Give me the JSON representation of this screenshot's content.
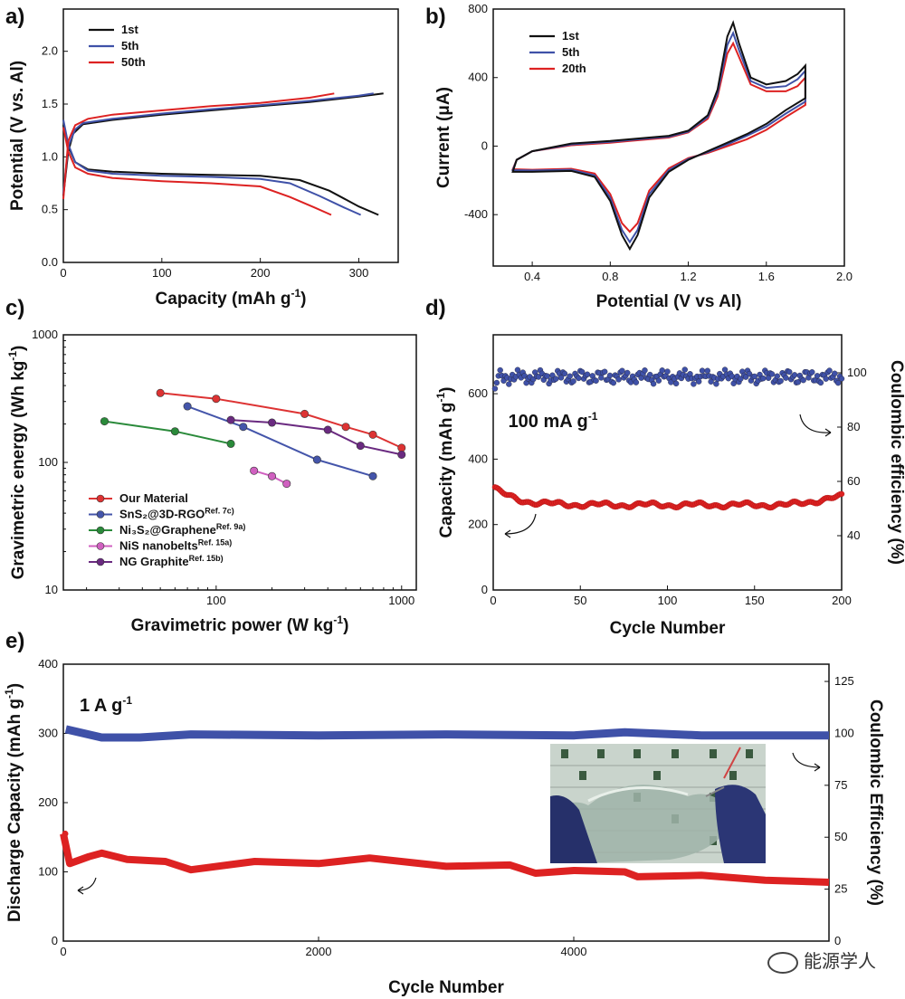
{
  "panel_labels": [
    "a)",
    "b)",
    "c)",
    "d)",
    "e)"
  ],
  "watermark": "能源学人",
  "chart_data": [
    {
      "panel": "a)",
      "type": "line",
      "xlabel": "Capacity (mAh g",
      "xlabel_sup": "-1",
      "xlabel_end": ")",
      "ylabel": "Potential (V vs. Al)",
      "xlim": [
        0,
        340
      ],
      "ylim": [
        0.0,
        2.4
      ],
      "xticks": [
        0,
        100,
        200,
        300
      ],
      "yticks": [
        0.0,
        0.5,
        1.0,
        1.5,
        2.0
      ],
      "ytick_labels": [
        "0.0",
        "0.5",
        "1.0",
        "1.5",
        "2.0"
      ],
      "legend_position": "top-left",
      "series": [
        {
          "name": "1st",
          "color": "#111111",
          "charge": [
            [
              0,
              0.63
            ],
            [
              5,
              1.05
            ],
            [
              10,
              1.22
            ],
            [
              20,
              1.31
            ],
            [
              50,
              1.35
            ],
            [
              100,
              1.4
            ],
            [
              150,
              1.44
            ],
            [
              200,
              1.48
            ],
            [
              250,
              1.52
            ],
            [
              300,
              1.57
            ],
            [
              325,
              1.6
            ]
          ],
          "discharge": [
            [
              0,
              1.3
            ],
            [
              5,
              1.1
            ],
            [
              12,
              0.95
            ],
            [
              25,
              0.88
            ],
            [
              50,
              0.86
            ],
            [
              100,
              0.84
            ],
            [
              150,
              0.83
            ],
            [
              200,
              0.82
            ],
            [
              240,
              0.78
            ],
            [
              270,
              0.68
            ],
            [
              300,
              0.53
            ],
            [
              320,
              0.45
            ]
          ]
        },
        {
          "name": "5th",
          "color": "#3f51a8",
          "charge": [
            [
              0,
              0.65
            ],
            [
              5,
              1.1
            ],
            [
              12,
              1.26
            ],
            [
              20,
              1.32
            ],
            [
              50,
              1.36
            ],
            [
              100,
              1.41
            ],
            [
              150,
              1.45
            ],
            [
              200,
              1.49
            ],
            [
              250,
              1.53
            ],
            [
              300,
              1.58
            ],
            [
              315,
              1.6
            ]
          ],
          "discharge": [
            [
              0,
              1.35
            ],
            [
              5,
              1.12
            ],
            [
              12,
              0.95
            ],
            [
              25,
              0.87
            ],
            [
              50,
              0.84
            ],
            [
              100,
              0.82
            ],
            [
              150,
              0.81
            ],
            [
              200,
              0.79
            ],
            [
              230,
              0.75
            ],
            [
              260,
              0.63
            ],
            [
              285,
              0.52
            ],
            [
              302,
              0.45
            ]
          ]
        },
        {
          "name": "50th",
          "color": "#dd2222",
          "charge": [
            [
              0,
              0.6
            ],
            [
              5,
              1.15
            ],
            [
              12,
              1.3
            ],
            [
              25,
              1.36
            ],
            [
              50,
              1.4
            ],
            [
              100,
              1.44
            ],
            [
              150,
              1.48
            ],
            [
              200,
              1.51
            ],
            [
              250,
              1.56
            ],
            [
              275,
              1.6
            ]
          ],
          "discharge": [
            [
              0,
              1.28
            ],
            [
              5,
              1.05
            ],
            [
              12,
              0.9
            ],
            [
              25,
              0.84
            ],
            [
              50,
              0.8
            ],
            [
              100,
              0.77
            ],
            [
              150,
              0.75
            ],
            [
              200,
              0.72
            ],
            [
              230,
              0.62
            ],
            [
              255,
              0.52
            ],
            [
              272,
              0.45
            ]
          ]
        }
      ]
    },
    {
      "panel": "b)",
      "type": "line",
      "xlabel": "Potential (V vs Al)",
      "ylabel": "Current (μA)",
      "xlim": [
        0.2,
        2.0
      ],
      "ylim": [
        -700,
        800
      ],
      "xticks": [
        0.4,
        0.8,
        1.2,
        1.6,
        2.0
      ],
      "xtick_labels": [
        "0.4",
        "0.8",
        "1.2",
        "1.6",
        "2.0"
      ],
      "yticks": [
        -400,
        0,
        400,
        800
      ],
      "legend_position": "top-left",
      "series": [
        {
          "name": "1st",
          "color": "#111111",
          "peak": 720,
          "valley": -600,
          "points": [
            [
              0.3,
              -150
            ],
            [
              0.4,
              -150
            ],
            [
              0.6,
              -145
            ],
            [
              0.72,
              -180
            ],
            [
              0.8,
              -320
            ],
            [
              0.86,
              -520
            ],
            [
              0.9,
              -600
            ],
            [
              0.94,
              -520
            ],
            [
              1.0,
              -300
            ],
            [
              1.1,
              -150
            ],
            [
              1.2,
              -80
            ],
            [
              1.3,
              -30
            ],
            [
              1.4,
              20
            ],
            [
              1.5,
              70
            ],
            [
              1.6,
              130
            ],
            [
              1.7,
              210
            ],
            [
              1.8,
              280
            ],
            [
              1.8,
              470
            ],
            [
              1.76,
              420
            ],
            [
              1.7,
              380
            ],
            [
              1.6,
              360
            ],
            [
              1.52,
              400
            ],
            [
              1.46,
              600
            ],
            [
              1.43,
              720
            ],
            [
              1.4,
              640
            ],
            [
              1.35,
              330
            ],
            [
              1.3,
              180
            ],
            [
              1.2,
              90
            ],
            [
              1.1,
              60
            ],
            [
              1.0,
              50
            ],
            [
              0.9,
              40
            ],
            [
              0.8,
              30
            ],
            [
              0.6,
              15
            ],
            [
              0.4,
              -30
            ],
            [
              0.32,
              -80
            ],
            [
              0.3,
              -150
            ]
          ]
        },
        {
          "name": "5th",
          "color": "#3f51a8",
          "peak": 660,
          "valley": -560,
          "points": [
            [
              0.3,
              -140
            ],
            [
              0.4,
              -142
            ],
            [
              0.6,
              -138
            ],
            [
              0.72,
              -170
            ],
            [
              0.8,
              -300
            ],
            [
              0.86,
              -490
            ],
            [
              0.9,
              -560
            ],
            [
              0.94,
              -490
            ],
            [
              1.0,
              -280
            ],
            [
              1.1,
              -140
            ],
            [
              1.2,
              -75
            ],
            [
              1.3,
              -35
            ],
            [
              1.4,
              10
            ],
            [
              1.5,
              60
            ],
            [
              1.6,
              115
            ],
            [
              1.7,
              190
            ],
            [
              1.8,
              260
            ],
            [
              1.8,
              440
            ],
            [
              1.76,
              390
            ],
            [
              1.7,
              350
            ],
            [
              1.6,
              340
            ],
            [
              1.52,
              380
            ],
            [
              1.46,
              560
            ],
            [
              1.43,
              660
            ],
            [
              1.4,
              590
            ],
            [
              1.35,
              310
            ],
            [
              1.3,
              170
            ],
            [
              1.2,
              85
            ],
            [
              1.1,
              55
            ],
            [
              1.0,
              45
            ],
            [
              0.9,
              35
            ],
            [
              0.8,
              25
            ],
            [
              0.6,
              10
            ],
            [
              0.4,
              -30
            ],
            [
              0.32,
              -80
            ],
            [
              0.3,
              -140
            ]
          ]
        },
        {
          "name": "20th",
          "color": "#dd2222",
          "peak": 600,
          "valley": -500,
          "points": [
            [
              0.3,
              -135
            ],
            [
              0.4,
              -138
            ],
            [
              0.6,
              -132
            ],
            [
              0.72,
              -160
            ],
            [
              0.8,
              -280
            ],
            [
              0.86,
              -450
            ],
            [
              0.9,
              -500
            ],
            [
              0.94,
              -450
            ],
            [
              1.0,
              -260
            ],
            [
              1.1,
              -130
            ],
            [
              1.2,
              -70
            ],
            [
              1.3,
              -40
            ],
            [
              1.4,
              0
            ],
            [
              1.5,
              40
            ],
            [
              1.6,
              95
            ],
            [
              1.7,
              170
            ],
            [
              1.8,
              240
            ],
            [
              1.8,
              400
            ],
            [
              1.76,
              350
            ],
            [
              1.7,
              320
            ],
            [
              1.6,
              320
            ],
            [
              1.52,
              360
            ],
            [
              1.46,
              520
            ],
            [
              1.43,
              600
            ],
            [
              1.4,
              540
            ],
            [
              1.35,
              290
            ],
            [
              1.3,
              160
            ],
            [
              1.2,
              80
            ],
            [
              1.1,
              50
            ],
            [
              1.0,
              40
            ],
            [
              0.9,
              30
            ],
            [
              0.8,
              20
            ],
            [
              0.6,
              5
            ],
            [
              0.4,
              -30
            ],
            [
              0.32,
              -80
            ],
            [
              0.3,
              -135
            ]
          ]
        }
      ]
    },
    {
      "panel": "c)",
      "type": "line",
      "scale": "log-log",
      "xlabel": "Gravimetric power (W kg",
      "xlabel_sup": "-1",
      "xlabel_end": ")",
      "ylabel": "Gravimetric energy (Wh kg",
      "ylabel_sup": "-1",
      "ylabel_end": ")",
      "xlim": [
        15,
        1200
      ],
      "ylim": [
        10,
        1000
      ],
      "xticks": [
        100,
        1000
      ],
      "yticks": [
        10,
        100,
        1000
      ],
      "legend_position": "bottom-left",
      "series": [
        {
          "name": "Our Material",
          "ref": "",
          "color": "#dd3333",
          "points": [
            [
              50,
              350
            ],
            [
              100,
              315
            ],
            [
              300,
              240
            ],
            [
              500,
              190
            ],
            [
              700,
              165
            ],
            [
              1000,
              130
            ]
          ]
        },
        {
          "name": "SnS₂@3D-RGO",
          "ref": "Ref. 7c)",
          "color": "#4455aa",
          "points": [
            [
              70,
              275
            ],
            [
              140,
              190
            ],
            [
              350,
              105
            ],
            [
              700,
              78
            ]
          ]
        },
        {
          "name": "Ni₃S₂@Graphene",
          "ref": "Ref. 9a)",
          "color": "#2a8a3a",
          "points": [
            [
              25,
              210
            ],
            [
              60,
              175
            ],
            [
              120,
              140
            ]
          ]
        },
        {
          "name": "NiS nanobelts",
          "ref": "Ref. 15a)",
          "color": "#d060c0",
          "points": [
            [
              160,
              86
            ],
            [
              200,
              78
            ],
            [
              240,
              68
            ]
          ]
        },
        {
          "name": "NG Graphite",
          "ref": "Ref. 15b)",
          "color": "#6a2a80",
          "points": [
            [
              120,
              215
            ],
            [
              200,
              205
            ],
            [
              400,
              180
            ],
            [
              600,
              135
            ],
            [
              1000,
              115
            ]
          ]
        }
      ]
    },
    {
      "panel": "d)",
      "type": "scatter",
      "xlabel": "Cycle Number",
      "ylabel": "Capacity (mAh g",
      "ylabel_sup": "-1",
      "ylabel_end": ")",
      "ylabel_right": "Coulombic efficiency (%)",
      "annotation": "100 mA g",
      "annotation_sup": "-1",
      "xlim": [
        0,
        200
      ],
      "ylim": [
        0,
        780
      ],
      "ylim_right": [
        20,
        114
      ],
      "xticks": [
        0,
        50,
        100,
        150,
        200
      ],
      "yticks": [
        0,
        200,
        400,
        600
      ],
      "yticks_right": [
        40,
        60,
        80,
        100
      ],
      "series": [
        {
          "name": "",
          "axis": "left",
          "color": "#dd2222",
          "start": 315,
          "level": 260,
          "end": 285
        },
        {
          "name": "",
          "axis": "right",
          "color": "#3f51a8",
          "start": 92,
          "level": 98.5,
          "end": 99.5
        }
      ]
    },
    {
      "panel": "e)",
      "type": "scatter",
      "xlabel": "Cycle Number",
      "ylabel": "Discharge Capacity (mAh g",
      "ylabel_sup": "-1",
      "ylabel_end": ")",
      "ylabel_right": "Coulombic Efficiency (%)",
      "annotation": "1 A g",
      "annotation_sup": "-1",
      "xlim": [
        0,
        6000
      ],
      "ylim": [
        0,
        400
      ],
      "ylim_right": [
        0,
        133.3
      ],
      "xticks": [
        0,
        2000,
        4000
      ],
      "yticks": [
        0,
        100,
        200,
        300,
        400
      ],
      "yticks_right": [
        0,
        25,
        50,
        75,
        100,
        125
      ],
      "series": [
        {
          "name": "",
          "axis": "left",
          "color": "#dd2222",
          "points": [
            [
              0,
              155
            ],
            [
              50,
              112
            ],
            [
              200,
              122
            ],
            [
              300,
              127
            ],
            [
              500,
              118
            ],
            [
              800,
              115
            ],
            [
              1000,
              103
            ],
            [
              1500,
              115
            ],
            [
              2000,
              112
            ],
            [
              2400,
              120
            ],
            [
              3000,
              108
            ],
            [
              3500,
              110
            ],
            [
              3700,
              98
            ],
            [
              4000,
              102
            ],
            [
              4400,
              100
            ],
            [
              4500,
              93
            ],
            [
              5000,
              95
            ],
            [
              5500,
              88
            ],
            [
              6000,
              85
            ]
          ]
        },
        {
          "name": "",
          "axis": "right",
          "color": "#3f51a8",
          "level": 99
        }
      ]
    }
  ]
}
